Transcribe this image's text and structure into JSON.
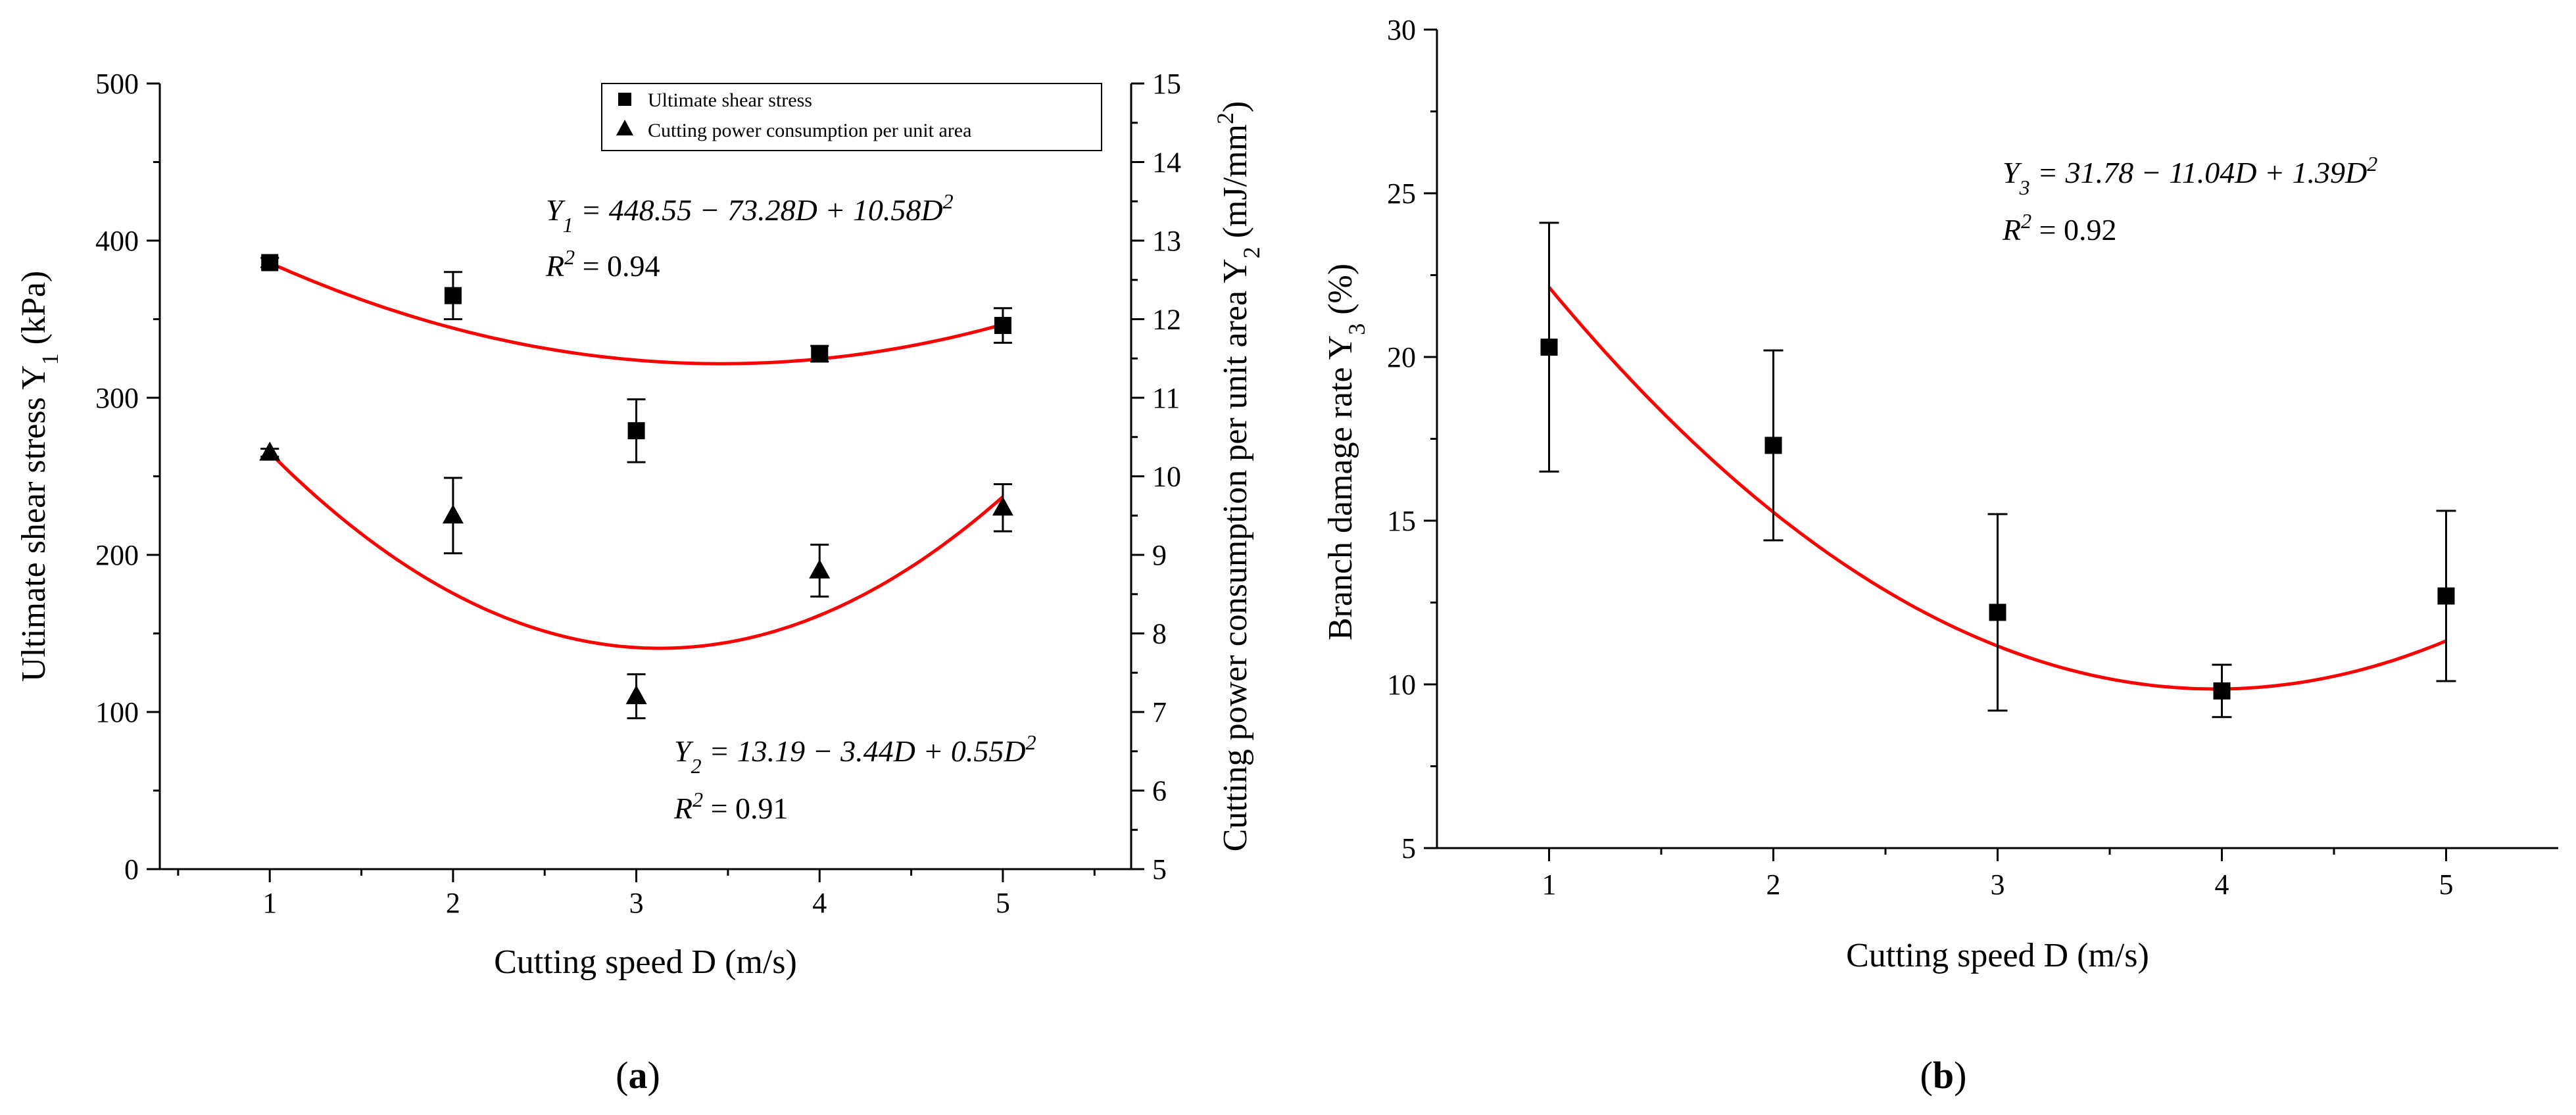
{
  "chart_data": [
    {
      "type": "scatter",
      "panel": "a",
      "panel_label": {
        "open": "(",
        "letter": "a",
        "close": ")"
      },
      "xlabel": "Cutting speed D (m/s)",
      "ylabel": {
        "main": "Ultimate shear stress Y",
        "sub": "1",
        "suffix": " (kPa)"
      },
      "y2label": {
        "main": "Cutting power consumption per unit area Y",
        "sub": "2",
        "suffix": " (mJ/mm",
        "sup": "2",
        "end": ")"
      },
      "x": [
        1,
        2,
        3,
        4,
        5
      ],
      "xlim": [
        0.4,
        5.7
      ],
      "xticks": [
        "1",
        "2",
        "3",
        "4",
        "5"
      ],
      "ylim": [
        0,
        500
      ],
      "yticks": [
        "0",
        "100",
        "200",
        "300",
        "400",
        "500"
      ],
      "y2lim": [
        5,
        15
      ],
      "y2ticks": [
        "5",
        "6",
        "7",
        "8",
        "9",
        "10",
        "11",
        "12",
        "13",
        "14",
        "15"
      ],
      "series": [
        {
          "name": "Ultimate shear stress",
          "marker": "square",
          "axis": "y1",
          "values": [
            386,
            365,
            279,
            328,
            346
          ],
          "errors": [
            3,
            15,
            20,
            5,
            11
          ],
          "fit": {
            "a": 448.55,
            "b": -73.28,
            "c": 10.58
          }
        },
        {
          "name": "Cutting power consumption per unit area",
          "marker": "triangle",
          "axis": "y2",
          "values": [
            10.3,
            9.5,
            7.2,
            8.8,
            9.6
          ],
          "errors": [
            0.05,
            0.48,
            0.28,
            0.33,
            0.3
          ],
          "fit": {
            "a": 13.19,
            "b": -3.44,
            "c": 0.55
          }
        }
      ],
      "equations": [
        {
          "y": "Y",
          "sub": "1",
          "rhs": " = 448.55 − 73.28D + 10.58D",
          "sup": "2",
          "r2_label": "R",
          "r2_sup": "2",
          "r2_value": " = 0.94"
        },
        {
          "y": "Y",
          "sub": "2",
          "rhs": " = 13.19 − 3.44D + 0.55D",
          "sup": "2",
          "r2_label": "R",
          "r2_sup": "2",
          "r2_value": " = 0.91"
        }
      ],
      "legend_position": "top-right",
      "colors": {
        "fit": "#ff0000",
        "marker": "#000000"
      }
    },
    {
      "type": "scatter",
      "panel": "b",
      "panel_label": {
        "open": "(",
        "letter": "b",
        "close": ")"
      },
      "xlabel": "Cutting speed D (m/s)",
      "ylabel": {
        "main": "Branch damage rate Y",
        "sub": "3",
        "suffix": " (%)"
      },
      "x": [
        1,
        2,
        3,
        4,
        5
      ],
      "xlim": [
        0.5,
        5.5
      ],
      "xticks": [
        "1",
        "2",
        "3",
        "4",
        "5"
      ],
      "ylim": [
        5,
        30
      ],
      "yticks": [
        "5",
        "10",
        "15",
        "20",
        "25",
        "30"
      ],
      "series": [
        {
          "name": "Branch damage rate",
          "marker": "square",
          "axis": "y1",
          "values": [
            20.3,
            17.3,
            12.2,
            9.8,
            12.7
          ],
          "errors": [
            3.8,
            2.9,
            3.0,
            0.8,
            2.6
          ],
          "fit": {
            "a": 31.78,
            "b": -11.04,
            "c": 1.39
          }
        }
      ],
      "equations": [
        {
          "y": "Y",
          "sub": "3",
          "rhs": " = 31.78 − 11.04D + 1.39D",
          "sup": "2",
          "r2_label": "R",
          "r2_sup": "2",
          "r2_value": " = 0.92"
        }
      ],
      "colors": {
        "fit": "#ff0000",
        "marker": "#000000"
      }
    }
  ]
}
